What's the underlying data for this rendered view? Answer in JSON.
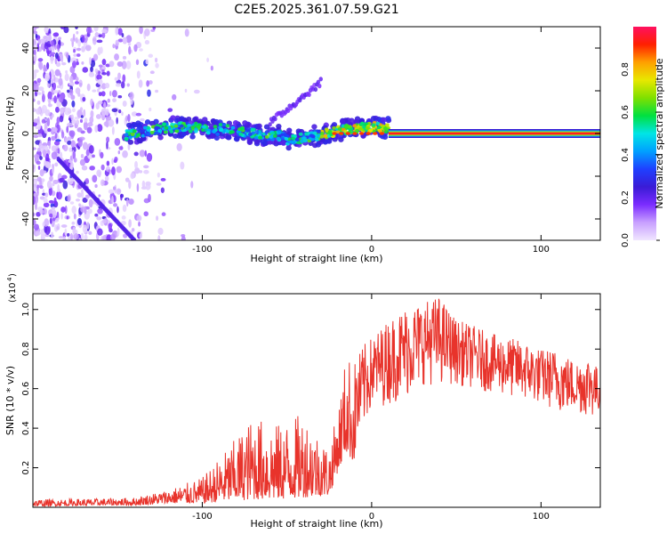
{
  "title": "C2E5.2025.361.07.59.G21",
  "chart_data": [
    {
      "type": "heatmap",
      "name": "spectrogram",
      "xlabel": "Height of straight line (km)",
      "ylabel": "Frequency (Hz)",
      "xlim": [
        -200,
        135
      ],
      "ylim": [
        -50,
        50
      ],
      "xticks": [
        -100,
        0,
        100
      ],
      "yticks": [
        -40,
        -20,
        0,
        20,
        40
      ],
      "colorbar": {
        "label": "Normalized spectral amplitude",
        "range": [
          0,
          1
        ],
        "ticks": [
          0.0,
          0.2,
          0.4,
          0.6,
          0.8
        ],
        "colors": [
          "#f0e6ff",
          "#c8a0ff",
          "#7b2cff",
          "#3a1bd6",
          "#1f40ff",
          "#00a0ff",
          "#00e5e5",
          "#00e040",
          "#7fe000",
          "#e8e800",
          "#ffa000",
          "#ff2000",
          "#ff1060"
        ]
      },
      "features": {
        "carrier_band_x": [
          10,
          135
        ],
        "carrier_freq_hz": 0,
        "carrier_amplitude": 0.95,
        "central_trace_x": [
          -145,
          10
        ],
        "central_trace_freq_range_hz": [
          -8,
          8
        ],
        "noise_region_x": [
          -200,
          -100
        ],
        "weak_branch": {
          "x": [
            -60,
            -30
          ],
          "freq_hz": [
            5,
            24
          ]
        },
        "diagonal_streak": {
          "x": [
            -185,
            -140
          ],
          "freq_hz": [
            -12,
            -50
          ]
        }
      }
    },
    {
      "type": "line",
      "name": "snr",
      "xlabel": "Height of straight line (km)",
      "ylabel": "SNR (10 * v/v)",
      "multiplier_label": "(x10",
      "multiplier_exp": "4",
      "xlim": [
        -200,
        135
      ],
      "ylim": [
        0,
        1.08
      ],
      "xticks": [
        -100,
        0,
        100
      ],
      "yticks": [
        0.2,
        0.4,
        0.6,
        0.8,
        1.0
      ],
      "color": "#e8332b",
      "envelope": {
        "x": [
          -200,
          -160,
          -140,
          -120,
          -100,
          -85,
          -70,
          -55,
          -40,
          -25,
          -20,
          -15,
          -10,
          -5,
          0,
          10,
          20,
          30,
          40,
          50,
          60,
          70,
          80,
          90,
          100,
          110,
          120,
          130,
          135
        ],
        "low": [
          0.005,
          0.01,
          0.01,
          0.02,
          0.02,
          0.03,
          0.04,
          0.04,
          0.05,
          0.06,
          0.18,
          0.28,
          0.22,
          0.38,
          0.5,
          0.52,
          0.55,
          0.62,
          0.62,
          0.62,
          0.6,
          0.58,
          0.56,
          0.54,
          0.52,
          0.48,
          0.48,
          0.45,
          0.48
        ],
        "high": [
          0.04,
          0.045,
          0.05,
          0.09,
          0.15,
          0.3,
          0.46,
          0.42,
          0.48,
          0.3,
          0.5,
          0.78,
          0.74,
          0.82,
          0.86,
          0.95,
          1.02,
          1.04,
          1.07,
          0.95,
          0.92,
          0.88,
          0.86,
          0.84,
          0.8,
          0.8,
          0.74,
          0.78,
          0.66
        ]
      }
    }
  ]
}
